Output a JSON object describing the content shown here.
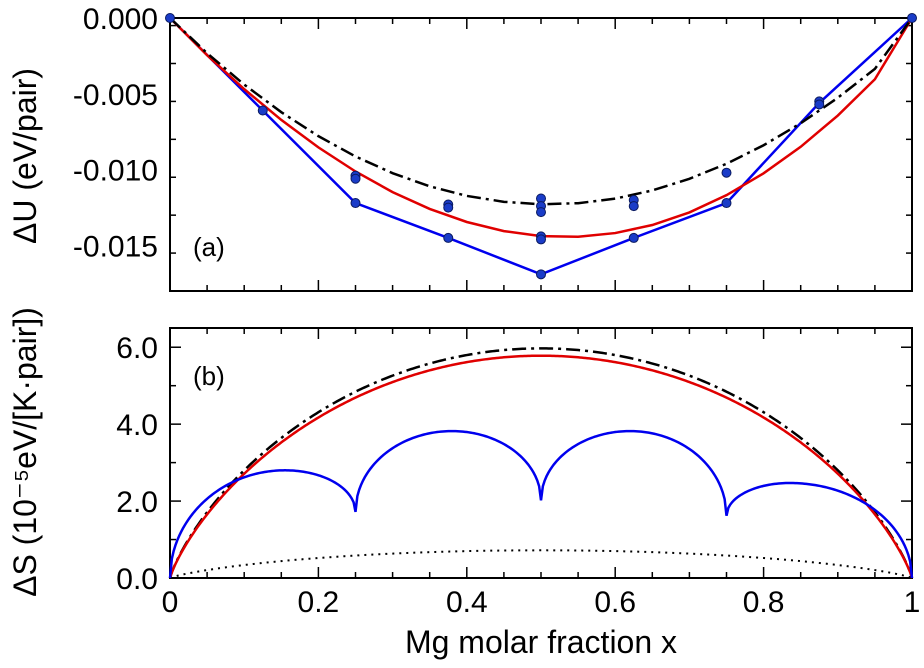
{
  "chart_data": [
    {
      "type": "line",
      "panel_label": "(a)",
      "ylabel": "ΔU (eV/pair)",
      "xlim": [
        0,
        1
      ],
      "ylim": [
        -0.018,
        0.0
      ],
      "yticks": [
        "0.000",
        "-0.005",
        "-0.010",
        "-0.015"
      ],
      "ytick_values": [
        0.0,
        -0.005,
        -0.01,
        -0.015
      ],
      "series": [
        {
          "name": "blue-hull",
          "color": "#0000ee",
          "style": "solid",
          "x": [
            0,
            0.125,
            0.25,
            0.375,
            0.5,
            0.625,
            0.75,
            0.875,
            1
          ],
          "y": [
            0,
            -0.0061,
            -0.0122,
            -0.0145,
            -0.0169,
            -0.0145,
            -0.0122,
            -0.0056,
            0
          ]
        },
        {
          "name": "red-fit",
          "color": "#e00000",
          "style": "solid",
          "x": [
            0,
            0.05,
            0.1,
            0.15,
            0.2,
            0.25,
            0.3,
            0.35,
            0.4,
            0.45,
            0.5,
            0.55,
            0.6,
            0.65,
            0.7,
            0.75,
            0.8,
            0.85,
            0.9,
            0.95,
            1
          ],
          "y": [
            0,
            -0.00245,
            -0.00469,
            -0.00672,
            -0.00853,
            -0.01012,
            -0.01148,
            -0.01259,
            -0.01345,
            -0.01405,
            -0.01438,
            -0.01442,
            -0.01418,
            -0.01365,
            -0.01282,
            -0.01168,
            -0.01024,
            -0.00849,
            -0.00643,
            -0.00404,
            0
          ]
        },
        {
          "name": "black-dashdot",
          "color": "#000000",
          "style": "dashdot",
          "x": [
            0,
            0.05,
            0.1,
            0.15,
            0.2,
            0.25,
            0.3,
            0.35,
            0.4,
            0.45,
            0.5,
            0.55,
            0.6,
            0.65,
            0.7,
            0.75,
            0.8,
            0.85,
            0.9,
            0.95,
            1
          ],
          "y": [
            0,
            -0.00232,
            -0.00439,
            -0.00621,
            -0.00779,
            -0.00913,
            -0.01023,
            -0.0111,
            -0.01173,
            -0.01212,
            -0.01228,
            -0.01221,
            -0.01191,
            -0.01137,
            -0.0106,
            -0.00961,
            -0.00839,
            -0.00694,
            -0.00526,
            -0.00335,
            0
          ]
        },
        {
          "name": "zero-line",
          "color": "#000000",
          "style": "dotted",
          "x": [
            0,
            1
          ],
          "y": [
            0,
            0
          ]
        }
      ],
      "points": {
        "name": "calculated-structures",
        "color": "#1a3cc8",
        "x": [
          0,
          0.125,
          0.25,
          0.25,
          0.25,
          0.375,
          0.375,
          0.375,
          0.5,
          0.5,
          0.5,
          0.5,
          0.5,
          0.5,
          0.625,
          0.625,
          0.625,
          0.75,
          0.75,
          0.875,
          0.875,
          1
        ],
        "y": [
          0,
          -0.0061,
          -0.0104,
          -0.0106,
          -0.0122,
          -0.0123,
          -0.0125,
          -0.0145,
          -0.0119,
          -0.0124,
          -0.0128,
          -0.0144,
          -0.0146,
          -0.0169,
          -0.012,
          -0.0124,
          -0.0145,
          -0.0102,
          -0.0122,
          -0.0055,
          -0.0057,
          0
        ]
      }
    },
    {
      "type": "line",
      "panel_label": "(b)",
      "ylabel": "ΔS (10⁻⁵eV/[K·pair])",
      "xlabel": "Mg molar fraction x",
      "xlim": [
        0,
        1
      ],
      "ylim": [
        0,
        6.5
      ],
      "xticks": [
        "0",
        "0.2",
        "0.4",
        "0.6",
        "0.8",
        "1"
      ],
      "xtick_values": [
        0,
        0.2,
        0.4,
        0.6,
        0.8,
        1
      ],
      "yticks": [
        "0.0",
        "2.0",
        "4.0",
        "6.0"
      ],
      "ytick_values": [
        0,
        2,
        4,
        6
      ],
      "series": [
        {
          "name": "black-dashdot",
          "color": "#000000",
          "style": "dashdot",
          "function": "ideal_mixing",
          "scale": 5.97
        },
        {
          "name": "red-fit",
          "color": "#e00000",
          "style": "solid",
          "function": "ideal_mixing",
          "scale": 5.78
        },
        {
          "name": "black-dotted",
          "color": "#000000",
          "style": "dotted",
          "function": "ideal_mixing",
          "scale": 0.72
        },
        {
          "name": "blue-piecewise",
          "color": "#0000ee",
          "style": "solid",
          "function": "piecewise_arches",
          "breaks": [
            0,
            0.25,
            0.5,
            0.75,
            1
          ],
          "arches": [
            {
              "peak_x": 0.155,
              "peak_y": 2.8,
              "start_y": 0.0,
              "end_y": 1.72
            },
            {
              "peak_x": 0.38,
              "peak_y": 3.82,
              "start_y": 1.72,
              "end_y": 2.02
            },
            {
              "peak_x": 0.62,
              "peak_y": 3.82,
              "start_y": 2.02,
              "end_y": 1.62
            },
            {
              "peak_x": 0.835,
              "peak_y": 2.47,
              "start_y": 1.62,
              "end_y": 0.0
            }
          ]
        }
      ]
    }
  ]
}
